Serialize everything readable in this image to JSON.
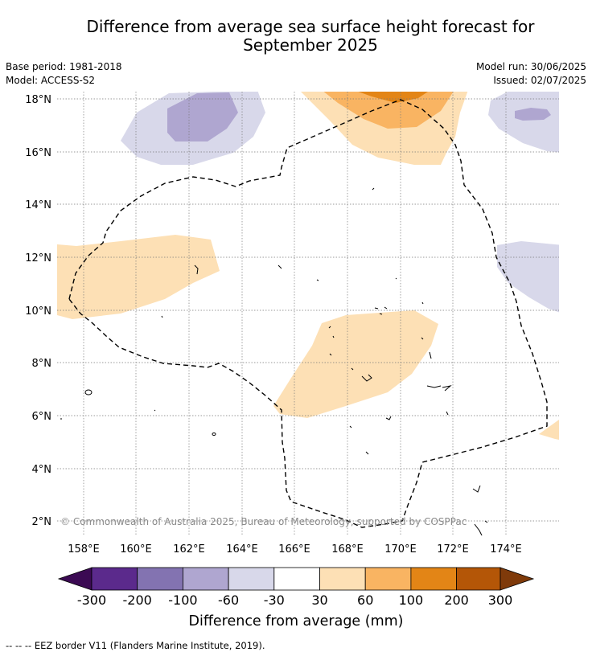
{
  "title_line1": "Difference from average sea surface height forecast for",
  "title_line2": "September 2025",
  "meta_left": [
    "Base period: 1981-2018",
    "Model: ACCESS-S2"
  ],
  "meta_right": [
    "Model run: 30/06/2025",
    "Issued: 02/07/2025"
  ],
  "map": {
    "lon_ticks": [
      "158°E",
      "160°E",
      "162°E",
      "164°E",
      "166°E",
      "168°E",
      "170°E",
      "172°E",
      "174°E"
    ],
    "lat_ticks": [
      "18°N",
      "16°N",
      "14°N",
      "12°N",
      "10°N",
      "8°N",
      "6°N",
      "4°N",
      "2°N"
    ],
    "lon_range": [
      157,
      176
    ],
    "lat_range": [
      1.5,
      18.3
    ],
    "copyright": "© Commonwealth of Australia 2025, Bureau of Meteorology, supported by COSPPac"
  },
  "colorbar": {
    "label": "Difference from average (mm)",
    "tick_labels": [
      "-300",
      "-200",
      "-100",
      "-60",
      "-30",
      "30",
      "60",
      "100",
      "200",
      "300"
    ],
    "colors": [
      "#3b0a53",
      "#5b2a8c",
      "#8373b1",
      "#afa6d0",
      "#d8d8ea",
      "#ffffff",
      "#fde0b5",
      "#f9b462",
      "#e38516",
      "#b45607",
      "#7f3a0a"
    ]
  },
  "legend_footnote": "--  --  -- EEZ border V11 (Flanders Marine Institute, 2019)."
}
